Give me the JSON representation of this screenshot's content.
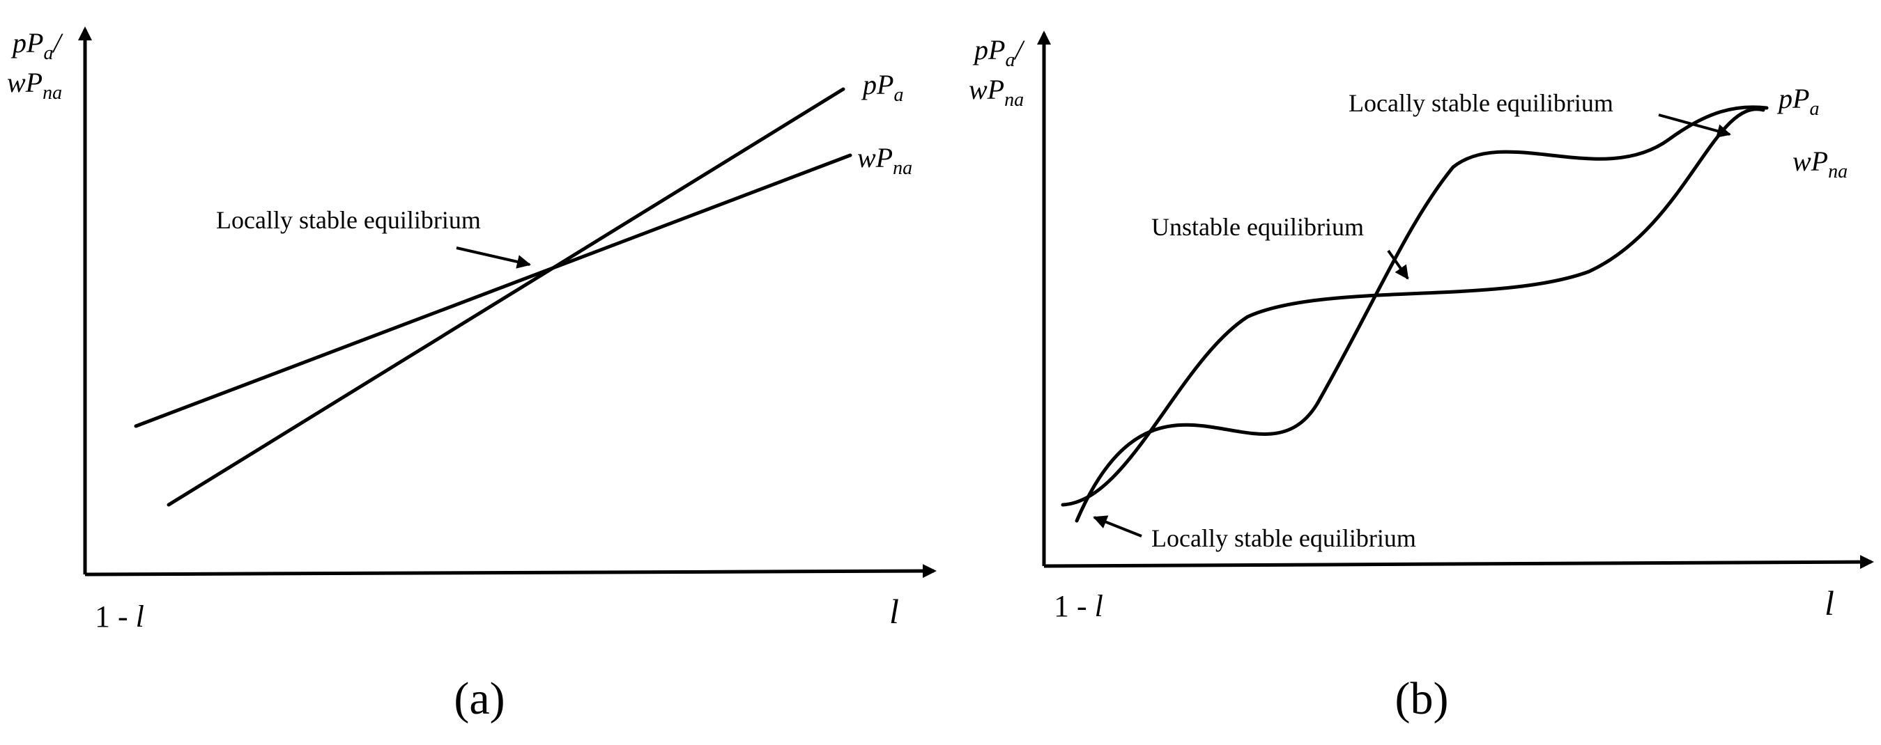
{
  "panel_a": {
    "caption": "(a)",
    "y_axis_label": {
      "line1_base": "pP",
      "line1_sub": "a",
      "line1_tail": "/",
      "line2_base": "wP",
      "line2_sub": "na"
    },
    "x_origin_label": {
      "prefix": "1 - ",
      "var": "l"
    },
    "x_end_label": "l",
    "curves": [
      {
        "base": "pP",
        "sub": "a"
      },
      {
        "base": "wP",
        "sub": "na"
      }
    ],
    "annotations": [
      "Locally stable equilibrium"
    ]
  },
  "panel_b": {
    "caption": "(b)",
    "y_axis_label": {
      "line1_base": "pP",
      "line1_sub": "a",
      "line1_tail": "/",
      "line2_base": "wP",
      "line2_sub": "na"
    },
    "x_origin_label": {
      "prefix": "1 - ",
      "var": "l"
    },
    "x_end_label": "l",
    "curves": [
      {
        "base": "pP",
        "sub": "a"
      },
      {
        "base": "wP",
        "sub": "na"
      }
    ],
    "annotations": [
      "Locally stable equilibrium",
      "Unstable equilibrium",
      "Locally stable equilibrium"
    ]
  }
}
